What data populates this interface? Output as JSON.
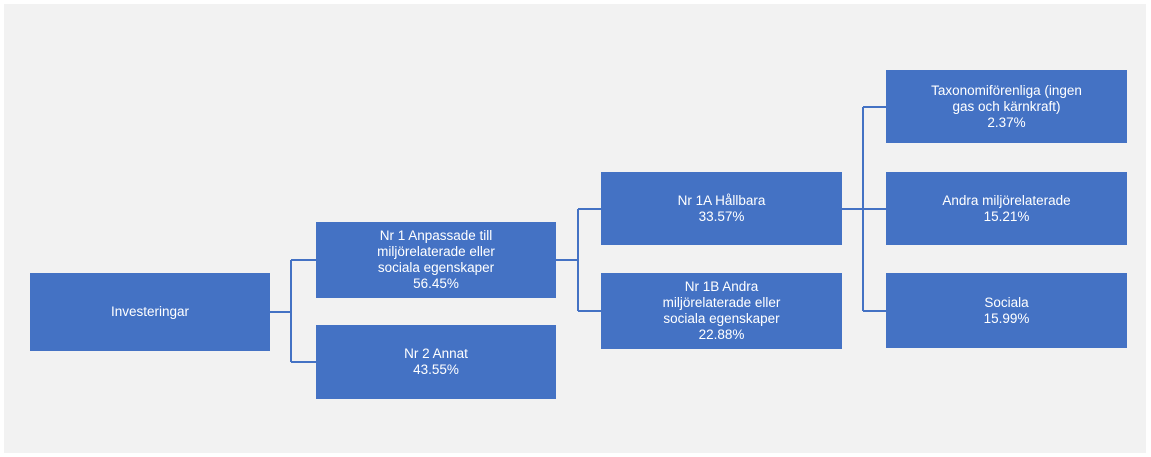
{
  "nodes": {
    "investeringar": {
      "label": "Investeringar"
    },
    "nr1": {
      "lines": [
        "Nr 1 Anpassade till",
        "miljörelaterade eller",
        "sociala egenskaper",
        "56.45%"
      ]
    },
    "nr2": {
      "lines": [
        "Nr 2 Annat",
        "43.55%"
      ]
    },
    "nr1a": {
      "lines": [
        "Nr 1A Hållbara",
        "33.57%"
      ]
    },
    "nr1b": {
      "lines": [
        "Nr 1B Andra",
        "miljörelaterade eller",
        "sociala egenskaper",
        "22.88%"
      ]
    },
    "taxonomi": {
      "lines": [
        "Taxonomiförenliga (ingen",
        "gas och kärnkraft)",
        "2.37%"
      ]
    },
    "andra": {
      "lines": [
        "Andra miljörelaterade",
        "15.21%"
      ]
    },
    "sociala": {
      "lines": [
        "Sociala",
        "15.99%"
      ]
    }
  },
  "colors": {
    "node_fill": "#4472c4",
    "connector": "#4472c4",
    "background": "#f2f2f2"
  }
}
